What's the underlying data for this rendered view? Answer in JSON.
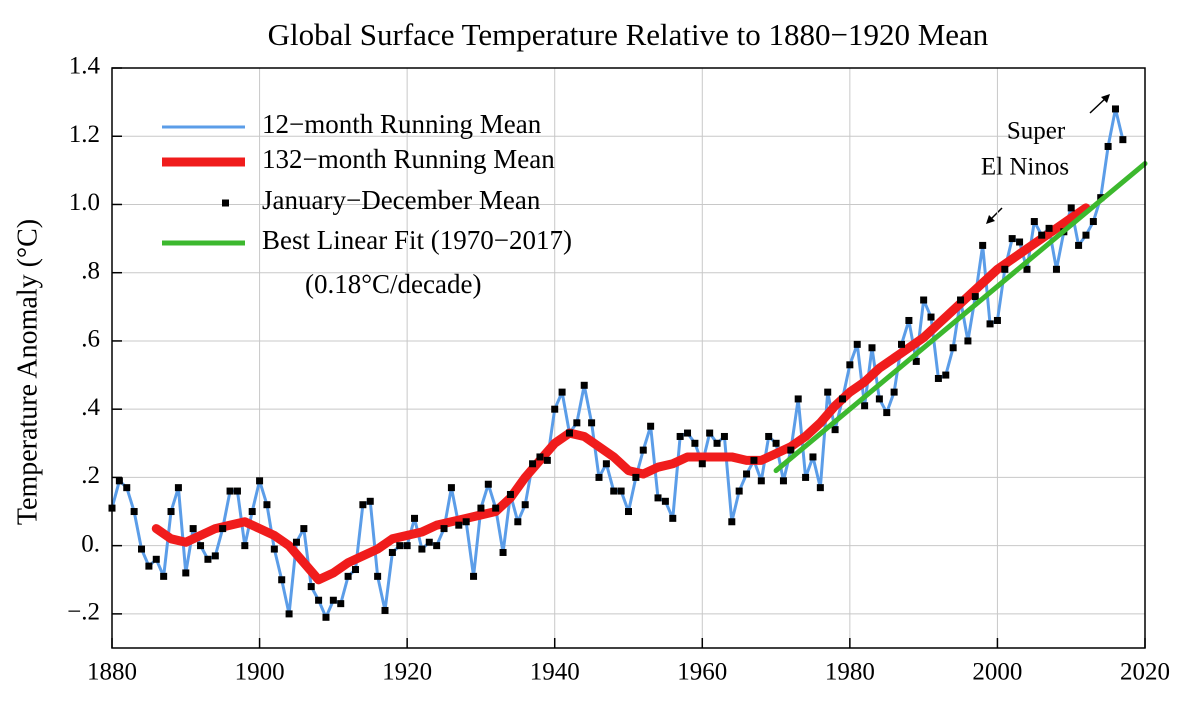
{
  "chart_data": {
    "type": "line",
    "title": "Global Surface Temperature Relative to 1880−1920 Mean",
    "ylabel": "Temperature Anomaly (°C)",
    "xlim": [
      1880,
      2020
    ],
    "xticks": [
      1880,
      1900,
      1920,
      1940,
      1960,
      1980,
      2000,
      2020
    ],
    "ylim": [
      -0.3,
      1.4
    ],
    "yticks": [
      {
        "value": -0.2,
        "label": "−.2"
      },
      {
        "value": 0,
        "label": "0."
      },
      {
        "value": 0.2,
        "label": ".2"
      },
      {
        "value": 0.4,
        "label": ".4"
      },
      {
        "value": 0.6,
        "label": ".6"
      },
      {
        "value": 0.8,
        "label": ".8"
      },
      {
        "value": 1.0,
        "label": "1.0"
      },
      1.2,
      1.4
    ],
    "grid": true,
    "legend": "upper left",
    "x": [
      1880,
      1881,
      1882,
      1883,
      1884,
      1885,
      1886,
      1887,
      1888,
      1889,
      1890,
      1891,
      1892,
      1893,
      1894,
      1895,
      1896,
      1897,
      1898,
      1899,
      1900,
      1901,
      1902,
      1903,
      1904,
      1905,
      1906,
      1907,
      1908,
      1909,
      1910,
      1911,
      1912,
      1913,
      1914,
      1915,
      1916,
      1917,
      1918,
      1919,
      1920,
      1921,
      1922,
      1923,
      1924,
      1925,
      1926,
      1927,
      1928,
      1929,
      1930,
      1931,
      1932,
      1933,
      1934,
      1935,
      1936,
      1937,
      1938,
      1939,
      1940,
      1941,
      1942,
      1943,
      1944,
      1945,
      1946,
      1947,
      1948,
      1949,
      1950,
      1951,
      1952,
      1953,
      1954,
      1955,
      1956,
      1957,
      1958,
      1959,
      1960,
      1961,
      1962,
      1963,
      1964,
      1965,
      1966,
      1967,
      1968,
      1969,
      1970,
      1971,
      1972,
      1973,
      1974,
      1975,
      1976,
      1977,
      1978,
      1979,
      1980,
      1981,
      1982,
      1983,
      1984,
      1985,
      1986,
      1987,
      1988,
      1989,
      1990,
      1991,
      1992,
      1993,
      1994,
      1995,
      1996,
      1997,
      1998,
      1999,
      2000,
      2001,
      2002,
      2003,
      2004,
      2005,
      2006,
      2007,
      2008,
      2009,
      2010,
      2011,
      2012,
      2013,
      2014,
      2015,
      2016,
      2017
    ],
    "series": [
      {
        "name": "12−month Running Mean",
        "color": "#5b9de8",
        "style": "line",
        "values": [
          0.11,
          0.19,
          0.17,
          0.1,
          -0.01,
          -0.06,
          -0.04,
          -0.09,
          0.1,
          0.17,
          -0.08,
          0.05,
          0.0,
          -0.04,
          -0.03,
          0.05,
          0.16,
          0.16,
          0.0,
          0.1,
          0.19,
          0.12,
          -0.01,
          -0.1,
          -0.2,
          0.01,
          0.05,
          -0.12,
          -0.16,
          -0.21,
          -0.16,
          -0.17,
          -0.09,
          -0.07,
          0.12,
          0.13,
          -0.09,
          -0.19,
          -0.02,
          0.0,
          0.0,
          0.08,
          -0.01,
          0.01,
          0.0,
          0.05,
          0.17,
          0.06,
          0.07,
          -0.09,
          0.11,
          0.18,
          0.11,
          -0.02,
          0.15,
          0.07,
          0.12,
          0.24,
          0.26,
          0.25,
          0.4,
          0.45,
          0.33,
          0.36,
          0.47,
          0.36,
          0.2,
          0.24,
          0.16,
          0.16,
          0.1,
          0.2,
          0.28,
          0.35,
          0.14,
          0.13,
          0.08,
          0.32,
          0.33,
          0.3,
          0.24,
          0.33,
          0.3,
          0.32,
          0.07,
          0.16,
          0.21,
          0.25,
          0.19,
          0.32,
          0.3,
          0.19,
          0.28,
          0.43,
          0.2,
          0.26,
          0.17,
          0.45,
          0.34,
          0.43,
          0.53,
          0.59,
          0.41,
          0.58,
          0.43,
          0.39,
          0.45,
          0.59,
          0.66,
          0.54,
          0.72,
          0.67,
          0.49,
          0.5,
          0.58,
          0.72,
          0.6,
          0.73,
          0.88,
          0.65,
          0.66,
          0.81,
          0.9,
          0.89,
          0.81,
          0.95,
          0.91,
          0.93,
          0.81,
          0.92,
          0.99,
          0.88,
          0.91,
          0.95,
          1.02,
          1.17,
          1.28,
          1.19
        ]
      },
      {
        "name": "132−month Running Mean",
        "color": "#f01c1c",
        "style": "thick",
        "x": [
          1886,
          1888,
          1890,
          1892,
          1894,
          1896,
          1898,
          1900,
          1902,
          1904,
          1906,
          1908,
          1910,
          1912,
          1914,
          1916,
          1918,
          1920,
          1922,
          1924,
          1926,
          1928,
          1930,
          1932,
          1934,
          1936,
          1938,
          1940,
          1942,
          1944,
          1946,
          1948,
          1950,
          1952,
          1954,
          1956,
          1958,
          1960,
          1962,
          1964,
          1966,
          1968,
          1970,
          1972,
          1974,
          1976,
          1978,
          1980,
          1982,
          1984,
          1986,
          1988,
          1990,
          1992,
          1994,
          1996,
          1998,
          2000,
          2002,
          2004,
          2006,
          2008,
          2010,
          2012
        ],
        "values": [
          0.05,
          0.02,
          0.01,
          0.03,
          0.05,
          0.06,
          0.07,
          0.05,
          0.03,
          0.0,
          -0.05,
          -0.1,
          -0.08,
          -0.05,
          -0.03,
          -0.01,
          0.02,
          0.03,
          0.04,
          0.06,
          0.07,
          0.08,
          0.09,
          0.1,
          0.14,
          0.2,
          0.25,
          0.3,
          0.33,
          0.32,
          0.29,
          0.26,
          0.22,
          0.21,
          0.23,
          0.24,
          0.26,
          0.26,
          0.26,
          0.26,
          0.25,
          0.25,
          0.27,
          0.29,
          0.32,
          0.36,
          0.41,
          0.45,
          0.48,
          0.52,
          0.55,
          0.58,
          0.61,
          0.65,
          0.69,
          0.73,
          0.77,
          0.81,
          0.84,
          0.87,
          0.9,
          0.93,
          0.96,
          0.99
        ]
      },
      {
        "name": "January−December Mean",
        "color": "#000000",
        "style": "markers",
        "values": [
          0.11,
          0.19,
          0.17,
          0.1,
          -0.01,
          -0.06,
          -0.04,
          -0.09,
          0.1,
          0.17,
          -0.08,
          0.05,
          0.0,
          -0.04,
          -0.03,
          0.05,
          0.16,
          0.16,
          0.0,
          0.1,
          0.19,
          0.12,
          -0.01,
          -0.1,
          -0.2,
          0.01,
          0.05,
          -0.12,
          -0.16,
          -0.21,
          -0.16,
          -0.17,
          -0.09,
          -0.07,
          0.12,
          0.13,
          -0.09,
          -0.19,
          -0.02,
          0.0,
          0.0,
          0.08,
          -0.01,
          0.01,
          0.0,
          0.05,
          0.17,
          0.06,
          0.07,
          -0.09,
          0.11,
          0.18,
          0.11,
          -0.02,
          0.15,
          0.07,
          0.12,
          0.24,
          0.26,
          0.25,
          0.4,
          0.45,
          0.33,
          0.36,
          0.47,
          0.36,
          0.2,
          0.24,
          0.16,
          0.16,
          0.1,
          0.2,
          0.28,
          0.35,
          0.14,
          0.13,
          0.08,
          0.32,
          0.33,
          0.3,
          0.24,
          0.33,
          0.3,
          0.32,
          0.07,
          0.16,
          0.21,
          0.25,
          0.19,
          0.32,
          0.3,
          0.19,
          0.28,
          0.43,
          0.2,
          0.26,
          0.17,
          0.45,
          0.34,
          0.43,
          0.53,
          0.59,
          0.41,
          0.58,
          0.43,
          0.39,
          0.45,
          0.59,
          0.66,
          0.54,
          0.72,
          0.67,
          0.49,
          0.5,
          0.58,
          0.72,
          0.6,
          0.73,
          0.88,
          0.65,
          0.66,
          0.81,
          0.9,
          0.89,
          0.81,
          0.95,
          0.91,
          0.93,
          0.81,
          0.92,
          0.99,
          0.88,
          0.91,
          0.95,
          1.02,
          1.17,
          1.28,
          1.19
        ]
      },
      {
        "name": "Best Linear Fit (1970−2017)",
        "color": "#3cb82e",
        "style": "thick-thin",
        "x": [
          1970,
          2020
        ],
        "values": [
          0.22,
          1.12
        ]
      }
    ],
    "annotations": [
      "(0.18°C/decade)",
      "Super",
      "El Ninos"
    ]
  }
}
